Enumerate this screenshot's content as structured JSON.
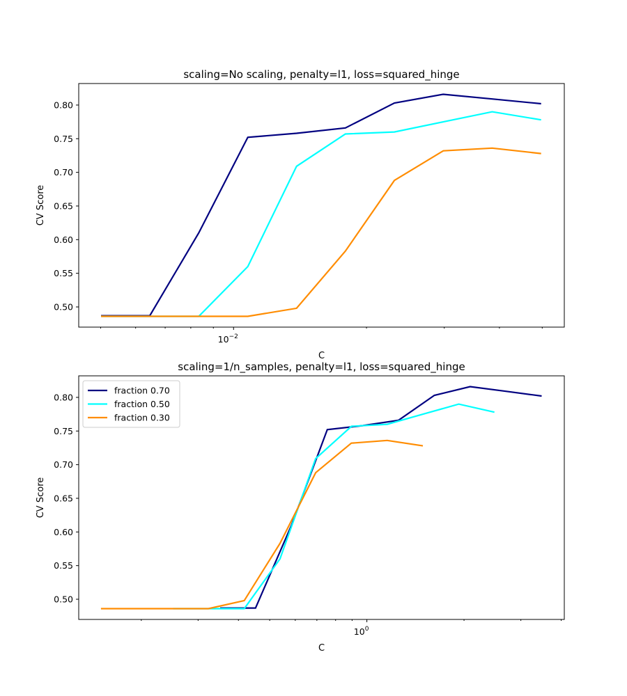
{
  "chart_data": [
    {
      "type": "line",
      "title": "scaling=No scaling, penalty=l1, loss=squared_hinge",
      "xlabel": "C",
      "ylabel": "CV Score",
      "xscale": "log",
      "xlim": [
        0.00446,
        0.0561
      ],
      "ylim": [
        0.47,
        0.832
      ],
      "yticks": [
        "0.50",
        "0.55",
        "0.60",
        "0.65",
        "0.70",
        "0.75",
        "0.80"
      ],
      "xtick_label": {
        "base": "10",
        "exp": "−2"
      },
      "legend": null,
      "series": [
        {
          "name": "fraction 0.70",
          "color": "#000080",
          "x": [
            0.00501,
            0.00646,
            0.00834,
            0.01077,
            0.01389,
            0.01792,
            0.02313,
            0.02985,
            0.03852,
            0.04971
          ],
          "values": [
            0.487,
            0.487,
            0.61,
            0.752,
            0.758,
            0.766,
            0.803,
            0.816,
            0.809,
            0.802
          ]
        },
        {
          "name": "fraction 0.50",
          "color": "#00ffff",
          "x": [
            0.00501,
            0.00646,
            0.00834,
            0.01077,
            0.01389,
            0.01792,
            0.02313,
            0.02985,
            0.03852,
            0.04971
          ],
          "values": [
            0.486,
            0.486,
            0.486,
            0.56,
            0.709,
            0.757,
            0.76,
            0.775,
            0.79,
            0.778
          ]
        },
        {
          "name": "fraction 0.30",
          "color": "#ff8c00",
          "x": [
            0.00501,
            0.00646,
            0.00834,
            0.01077,
            0.01389,
            0.01792,
            0.02313,
            0.02985,
            0.03852,
            0.04971
          ],
          "values": [
            0.486,
            0.486,
            0.486,
            0.486,
            0.498,
            0.583,
            0.688,
            0.732,
            0.736,
            0.728
          ]
        }
      ]
    },
    {
      "type": "line",
      "title": "scaling=1/n_samples, penalty=l1, loss=squared_hinge",
      "xlabel": "C",
      "ylabel": "CV Score",
      "xscale": "log",
      "xlim": [
        0.128,
        4.09
      ],
      "ylim": [
        0.47,
        0.832
      ],
      "yticks": [
        "0.50",
        "0.55",
        "0.60",
        "0.65",
        "0.70",
        "0.75",
        "0.80"
      ],
      "xtick_label": {
        "base": "10",
        "exp": "0"
      },
      "legend": "upper-left",
      "series": [
        {
          "name": "fraction 0.70",
          "color": "#000080",
          "x": [
            0.351,
            0.452,
            0.584,
            0.754,
            0.972,
            1.254,
            1.619,
            2.089,
            2.696,
            3.48
          ],
          "values": [
            0.487,
            0.487,
            0.61,
            0.752,
            0.758,
            0.766,
            0.803,
            0.816,
            0.809,
            0.802
          ]
        },
        {
          "name": "fraction 0.50",
          "color": "#00ffff",
          "x": [
            0.251,
            0.323,
            0.417,
            0.538,
            0.694,
            0.896,
            1.156,
            1.492,
            1.926,
            2.485
          ],
          "values": [
            0.486,
            0.486,
            0.486,
            0.56,
            0.709,
            0.757,
            0.76,
            0.775,
            0.79,
            0.778
          ]
        },
        {
          "name": "fraction 0.30",
          "color": "#ff8c00",
          "x": [
            0.15,
            0.194,
            0.25,
            0.323,
            0.417,
            0.538,
            0.694,
            0.895,
            1.156,
            1.491
          ],
          "values": [
            0.486,
            0.486,
            0.486,
            0.486,
            0.498,
            0.583,
            0.688,
            0.732,
            0.736,
            0.728
          ]
        }
      ]
    }
  ]
}
